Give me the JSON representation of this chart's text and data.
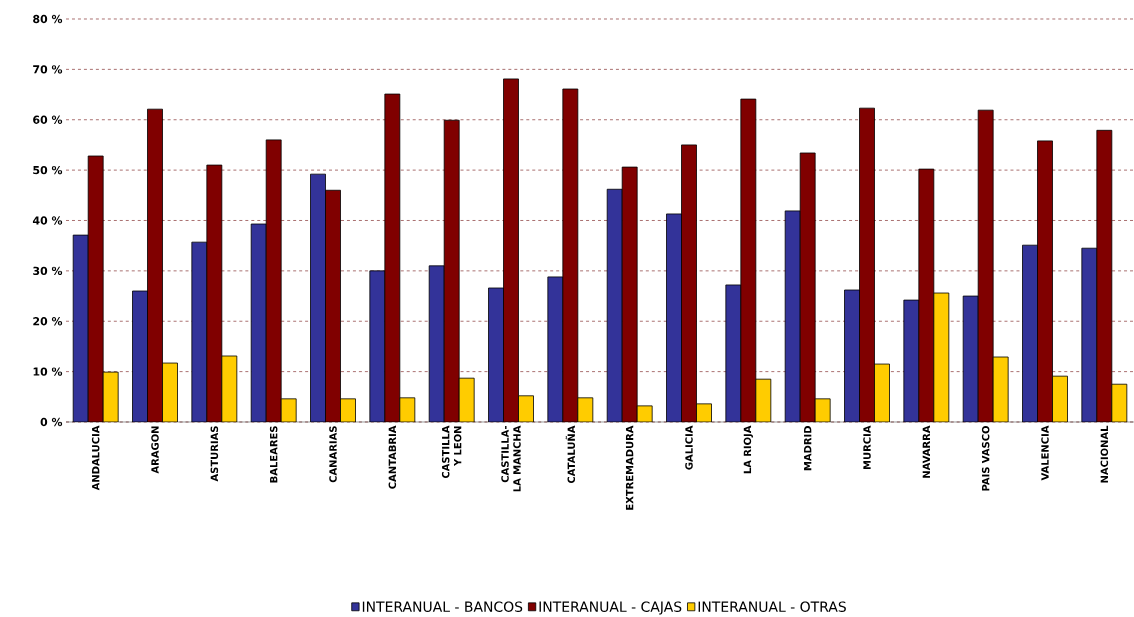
{
  "chart_data": {
    "type": "bar",
    "categories": [
      "ANDALUCIA",
      "ARAGON",
      "ASTURIAS",
      "BALEARES",
      "CANARIAS",
      "CANTABRIA",
      "CASTILLA Y LEON",
      "CASTILLA-LA MANCHA",
      "CATALUÑA",
      "EXTREMADURA",
      "GALICIA",
      "LA RIOJA",
      "MADRID",
      "MURCIA",
      "NAVARRA",
      "PAIS VASCO",
      "VALENCIA",
      "NACIONAL"
    ],
    "series": [
      {
        "name": "INTERANUAL - BANCOS",
        "color": "#333399",
        "values": [
          37.1,
          26.0,
          35.7,
          39.3,
          49.2,
          30.0,
          31.0,
          26.6,
          28.8,
          46.2,
          41.3,
          27.2,
          41.9,
          26.2,
          24.2,
          25.0,
          35.1,
          34.5
        ]
      },
      {
        "name": "INTERANUAL - CAJAS",
        "color": "#800000",
        "values": [
          52.8,
          62.1,
          51.0,
          56.0,
          46.0,
          65.1,
          59.9,
          68.1,
          66.1,
          50.6,
          55.0,
          64.1,
          53.4,
          62.3,
          50.2,
          61.9,
          55.8,
          57.9
        ]
      },
      {
        "name": "INTERANUAL - OTRAS",
        "color": "#ffcc00",
        "values": [
          9.9,
          11.7,
          13.1,
          4.6,
          4.6,
          4.8,
          8.7,
          5.2,
          4.8,
          3.2,
          3.6,
          8.5,
          4.6,
          11.5,
          25.6,
          12.9,
          9.1,
          7.5
        ]
      }
    ],
    "ylim": [
      0,
      80
    ],
    "yticks": [
      {
        "value": 0,
        "label": "0 %"
      },
      {
        "value": 10,
        "label": "10 %"
      },
      {
        "value": 20,
        "label": "20 %"
      },
      {
        "value": 30,
        "label": "30 %"
      },
      {
        "value": 40,
        "label": "40 %"
      },
      {
        "value": 50,
        "label": "50 %"
      },
      {
        "value": 60,
        "label": "60 %"
      },
      {
        "value": 70,
        "label": "70 %"
      },
      {
        "value": 80,
        "label": "80 %"
      }
    ],
    "grid": "y",
    "legend": "bottom"
  }
}
